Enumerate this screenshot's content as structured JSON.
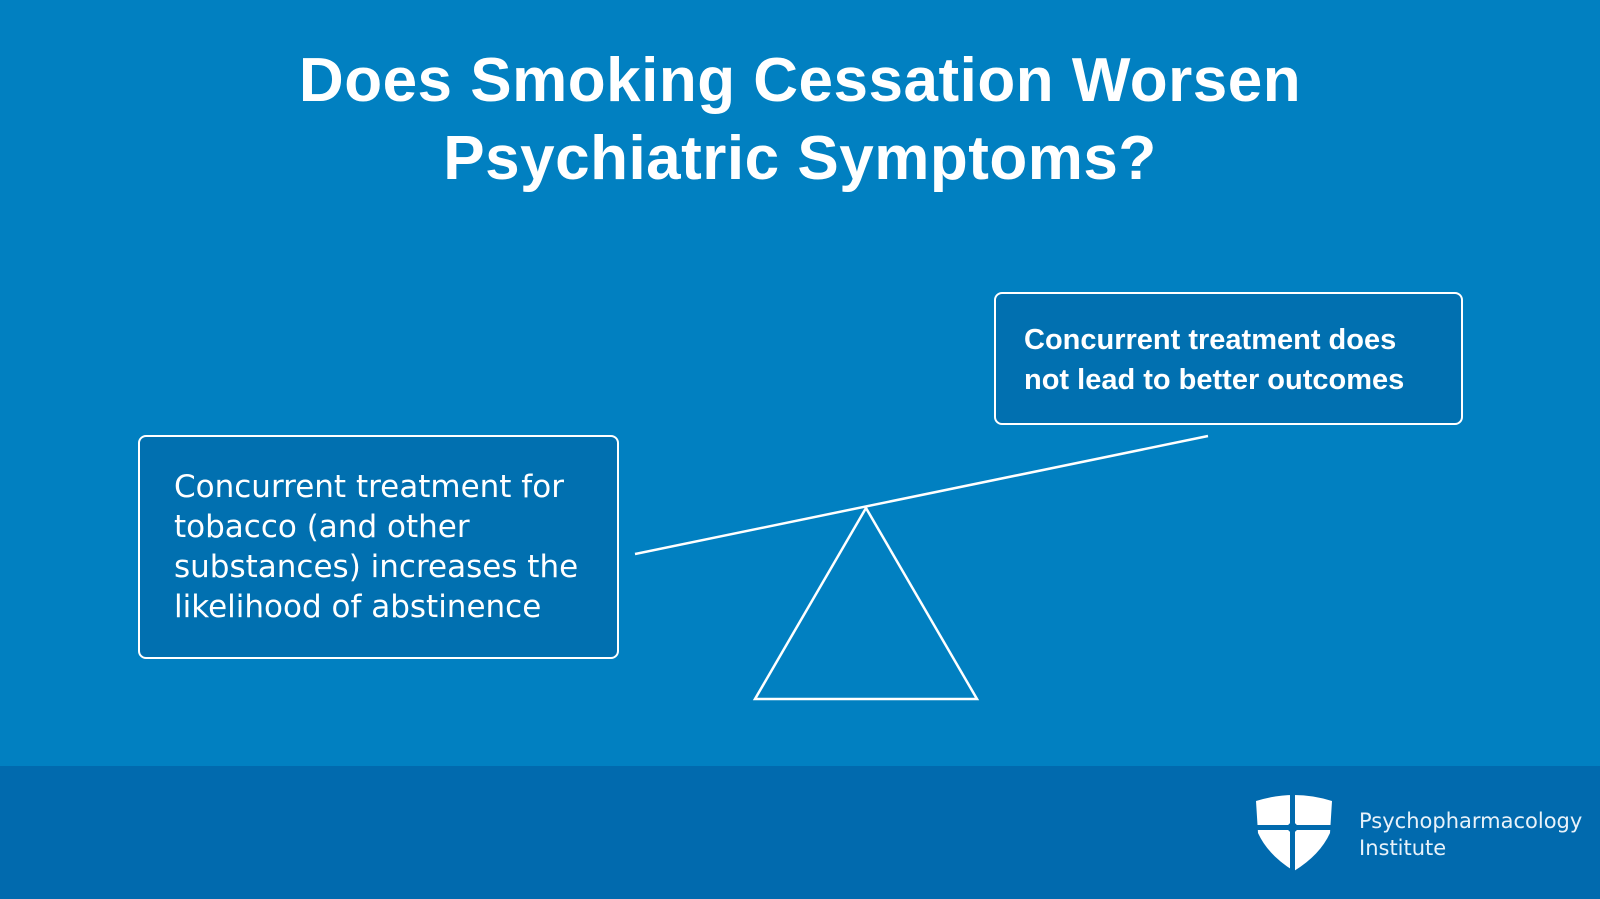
{
  "title": {
    "line1": "Does Smoking Cessation Worsen",
    "line2": "Psychiatric Symptoms?"
  },
  "left_box": {
    "text": "Concurrent treatment for tobacco (and other substances) increases the likelihood of abstinence"
  },
  "right_box": {
    "text": "Concurrent treatment does not lead to better outcomes"
  },
  "footer": {
    "brand_line1": "Psychopharmacology",
    "brand_line2": "Institute",
    "logo_icon": "shield-cross-icon"
  },
  "colors": {
    "background": "#0180c1",
    "footer": "#016aae",
    "box_fill": "#0170b0",
    "foreground": "#ffffff"
  }
}
